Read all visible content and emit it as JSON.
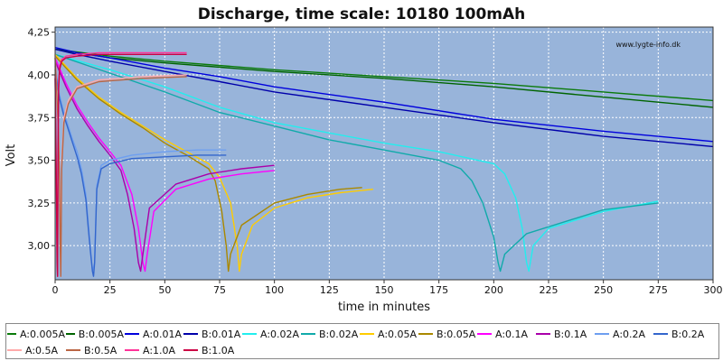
{
  "chart_data": {
    "type": "line",
    "title": "Discharge, time scale: 10180 100mAh",
    "xlabel": "time in minutes",
    "ylabel": "Volt",
    "watermark": "www.lygte-info.dk",
    "xlim": [
      0,
      300
    ],
    "ylim": [
      2.8,
      4.28
    ],
    "x_ticks": [
      0,
      25,
      50,
      75,
      100,
      125,
      150,
      175,
      200,
      225,
      250,
      275,
      300
    ],
    "y_ticks": [
      3.0,
      3.25,
      3.5,
      3.75,
      4.0,
      4.25
    ],
    "x_tick_labels": [
      "0",
      "25",
      "50",
      "75",
      "100",
      "125",
      "150",
      "175",
      "200",
      "225",
      "250",
      "275",
      "300"
    ],
    "y_tick_labels": [
      "3,00",
      "3,25",
      "3,50",
      "3,75",
      "4,00",
      "4,25"
    ],
    "grid": true,
    "legend_placement": "bottom",
    "colors": {
      "plot_bg": "#98B4DA",
      "grid": "#ffffff"
    },
    "series": [
      {
        "name": "A:0.005A",
        "color": "#0a7a0a",
        "x": [
          0,
          25,
          50,
          100,
          150,
          200,
          250,
          300
        ],
        "y": [
          4.15,
          4.11,
          4.08,
          4.03,
          3.99,
          3.95,
          3.9,
          3.85
        ]
      },
      {
        "name": "B:0.005A",
        "color": "#006400",
        "x": [
          0,
          25,
          50,
          100,
          150,
          200,
          250,
          300
        ],
        "y": [
          4.15,
          4.1,
          4.07,
          4.02,
          3.98,
          3.93,
          3.87,
          3.81
        ]
      },
      {
        "name": "A:0.01A",
        "color": "#0000dd",
        "x": [
          0,
          10,
          25,
          50,
          75,
          100,
          150,
          200,
          250,
          300
        ],
        "y": [
          4.16,
          4.13,
          4.1,
          4.04,
          3.99,
          3.93,
          3.84,
          3.74,
          3.67,
          3.61
        ]
      },
      {
        "name": "B:0.01A",
        "color": "#0000aa",
        "x": [
          0,
          10,
          25,
          50,
          75,
          100,
          150,
          200,
          250,
          300
        ],
        "y": [
          4.15,
          4.12,
          4.08,
          4.02,
          3.96,
          3.9,
          3.81,
          3.72,
          3.64,
          3.58
        ]
      },
      {
        "name": "A:0.02A",
        "color": "#22eeee",
        "x": [
          0,
          25,
          50,
          75,
          100,
          125,
          150,
          175,
          200,
          205,
          210,
          213,
          215,
          216,
          218,
          225,
          250,
          275
        ],
        "y": [
          4.12,
          4.03,
          3.93,
          3.81,
          3.72,
          3.66,
          3.6,
          3.55,
          3.48,
          3.42,
          3.28,
          3.1,
          2.9,
          2.85,
          3.0,
          3.1,
          3.2,
          3.26
        ]
      },
      {
        "name": "B:0.02A",
        "color": "#11aaaa",
        "x": [
          0,
          25,
          50,
          75,
          100,
          125,
          150,
          175,
          185,
          190,
          195,
          200,
          202,
          203,
          205,
          215,
          250,
          275
        ],
        "y": [
          4.12,
          4.01,
          3.9,
          3.78,
          3.7,
          3.62,
          3.56,
          3.5,
          3.45,
          3.38,
          3.25,
          3.05,
          2.9,
          2.85,
          2.95,
          3.07,
          3.21,
          3.25
        ]
      },
      {
        "name": "A:0.05A",
        "color": "#ffcc00",
        "x": [
          0,
          10,
          20,
          30,
          40,
          50,
          60,
          70,
          75,
          80,
          83,
          84,
          85,
          90,
          100,
          115,
          130,
          145
        ],
        "y": [
          4.12,
          3.98,
          3.87,
          3.78,
          3.7,
          3.62,
          3.55,
          3.48,
          3.4,
          3.25,
          3.0,
          2.85,
          2.95,
          3.12,
          3.22,
          3.28,
          3.31,
          3.33
        ]
      },
      {
        "name": "B:0.05A",
        "color": "#aa8800",
        "x": [
          0,
          10,
          20,
          30,
          40,
          50,
          60,
          70,
          73,
          76,
          78,
          79,
          80,
          85,
          100,
          115,
          130,
          140
        ],
        "y": [
          4.11,
          3.97,
          3.86,
          3.77,
          3.69,
          3.6,
          3.53,
          3.45,
          3.38,
          3.2,
          3.0,
          2.85,
          2.95,
          3.12,
          3.25,
          3.3,
          3.33,
          3.34
        ]
      },
      {
        "name": "A:0.1A",
        "color": "#ff00ff",
        "x": [
          0,
          5,
          10,
          15,
          20,
          25,
          30,
          35,
          38,
          40,
          41,
          42,
          45,
          55,
          70,
          85,
          100
        ],
        "y": [
          4.1,
          3.95,
          3.82,
          3.72,
          3.63,
          3.55,
          3.47,
          3.3,
          3.1,
          2.9,
          2.85,
          2.95,
          3.2,
          3.33,
          3.39,
          3.42,
          3.44
        ]
      },
      {
        "name": "B:0.1A",
        "color": "#aa00aa",
        "x": [
          0,
          5,
          10,
          15,
          20,
          25,
          30,
          33,
          36,
          38,
          39,
          40,
          43,
          55,
          70,
          85,
          100
        ],
        "y": [
          4.08,
          3.93,
          3.8,
          3.7,
          3.61,
          3.53,
          3.44,
          3.3,
          3.1,
          2.9,
          2.85,
          2.95,
          3.22,
          3.36,
          3.42,
          3.45,
          3.47
        ]
      },
      {
        "name": "A:0.2A",
        "color": "#6e9ff0",
        "x": [
          0,
          2,
          4,
          6,
          8,
          10,
          12,
          14,
          15,
          16,
          17,
          18,
          19,
          21,
          25,
          35,
          50,
          65,
          78
        ],
        "y": [
          4.05,
          3.88,
          3.78,
          3.7,
          3.62,
          3.55,
          3.45,
          3.3,
          3.15,
          3.0,
          2.85,
          2.9,
          3.35,
          3.47,
          3.5,
          3.53,
          3.55,
          3.56,
          3.56
        ]
      },
      {
        "name": "B:0.2A",
        "color": "#3366cc",
        "x": [
          0,
          2,
          4,
          6,
          8,
          10,
          12,
          14,
          15,
          16,
          17,
          17.5,
          18,
          19,
          21,
          25,
          35,
          50,
          65,
          78
        ],
        "y": [
          4.03,
          3.86,
          3.76,
          3.68,
          3.6,
          3.52,
          3.42,
          3.27,
          3.12,
          2.98,
          2.85,
          2.82,
          2.9,
          3.33,
          3.45,
          3.48,
          3.51,
          3.52,
          3.53,
          3.53
        ]
      },
      {
        "name": "A:0.5A",
        "color": "#ffaaaa",
        "x": [
          0,
          0.8,
          1.5,
          2,
          2.3,
          2.6,
          3,
          4,
          6,
          10,
          20,
          40,
          60
        ],
        "y": [
          4.12,
          3.9,
          3.7,
          3.4,
          3.0,
          2.82,
          3.5,
          3.75,
          3.85,
          3.93,
          3.97,
          3.99,
          4.0
        ]
      },
      {
        "name": "B:0.5A",
        "color": "#bb6644",
        "x": [
          0,
          0.8,
          1.5,
          2,
          2.3,
          2.6,
          3,
          4,
          6,
          10,
          20,
          40,
          60
        ],
        "y": [
          4.1,
          3.88,
          3.68,
          3.38,
          3.0,
          2.82,
          3.45,
          3.72,
          3.83,
          3.92,
          3.96,
          3.98,
          3.99
        ]
      },
      {
        "name": "A:1.0A",
        "color": "#ff3399",
        "x": [
          0,
          0.3,
          0.6,
          0.9,
          1.1,
          1.3,
          1.6,
          2,
          3,
          5,
          10,
          20,
          40,
          60
        ],
        "y": [
          4.0,
          3.7,
          3.3,
          2.9,
          2.82,
          3.6,
          3.95,
          4.05,
          4.09,
          4.11,
          4.12,
          4.13,
          4.13,
          4.13
        ]
      },
      {
        "name": "B:1.0A",
        "color": "#cc0044",
        "x": [
          0,
          0.3,
          0.6,
          0.9,
          1.1,
          1.3,
          1.6,
          2,
          3,
          5,
          10,
          20,
          40,
          60
        ],
        "y": [
          3.98,
          3.68,
          3.28,
          2.9,
          2.82,
          3.55,
          3.92,
          4.03,
          4.08,
          4.1,
          4.11,
          4.12,
          4.12,
          4.12
        ]
      }
    ]
  }
}
